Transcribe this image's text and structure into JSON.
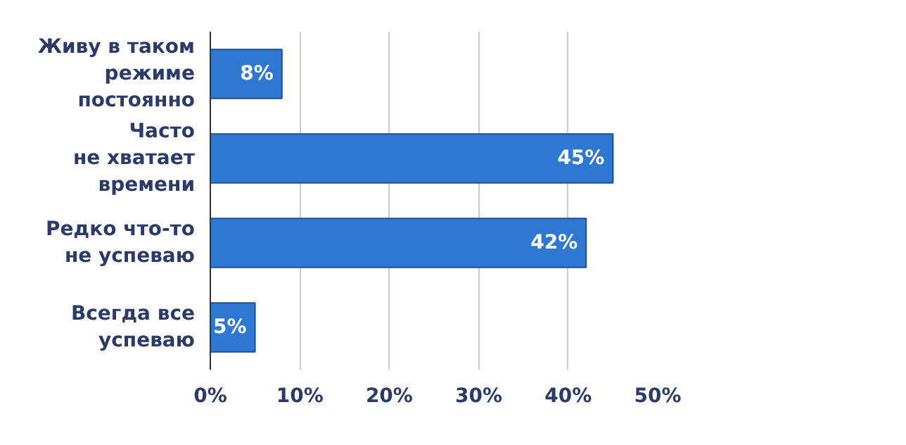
{
  "chart_data": {
    "type": "bar",
    "orientation": "horizontal",
    "categories": [
      "Живу в таком\nрежиме\nпостоянно",
      "Часто\nне хватает\nвремени",
      "Редко что-то\nне успеваю",
      "Всегда все\nуспеваю"
    ],
    "values": [
      8,
      45,
      42,
      5
    ],
    "value_labels": [
      "8%",
      "45%",
      "42%",
      "5%"
    ],
    "color": "#2f78d2",
    "xlim": [
      0,
      50
    ],
    "xticks": [
      {
        "value": 0,
        "label": "0%"
      },
      {
        "value": 10,
        "label": "10%"
      },
      {
        "value": 20,
        "label": "20%"
      },
      {
        "value": 30,
        "label": "30%"
      },
      {
        "value": 40,
        "label": "40%"
      },
      {
        "value": 50,
        "label": "50%"
      }
    ],
    "grid": "x"
  }
}
